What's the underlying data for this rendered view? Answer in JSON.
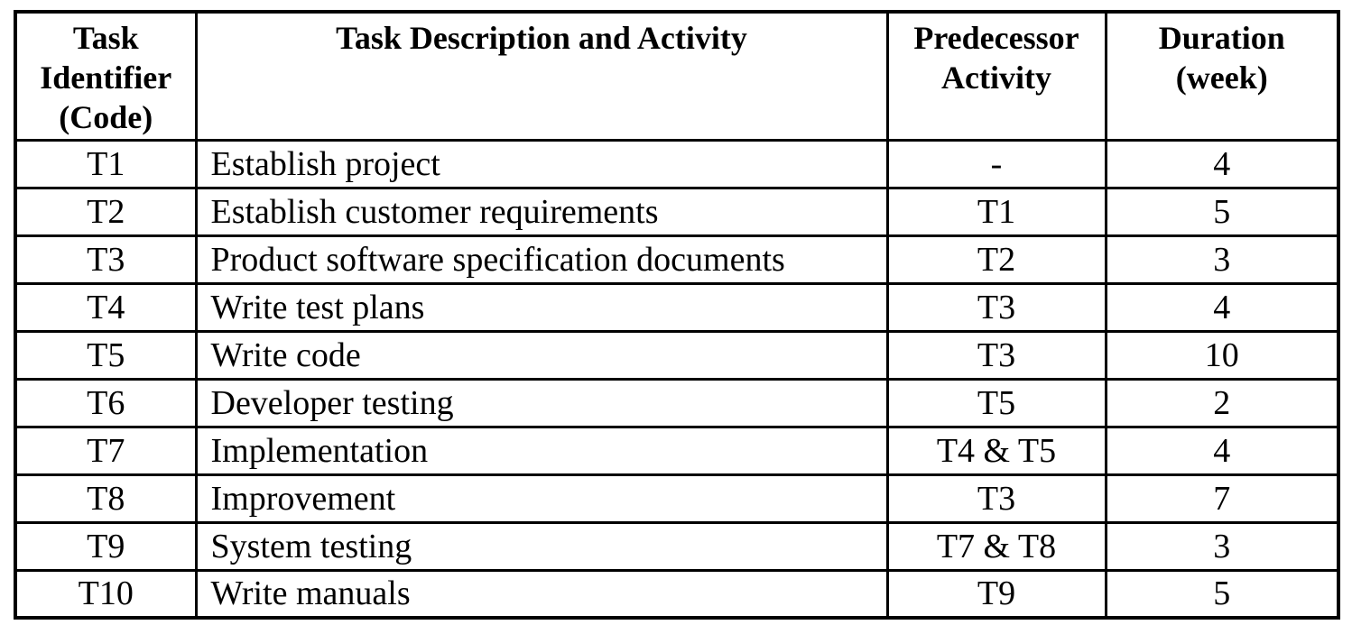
{
  "table": {
    "headers": {
      "code": "Task\nIdentifier\n(Code)",
      "description": "Task Description and Activity",
      "predecessor": "Predecessor\nActivity",
      "duration": "Duration\n(week)"
    },
    "rows": [
      {
        "code": "T1",
        "description": "Establish project",
        "predecessor": "-",
        "duration": "4"
      },
      {
        "code": "T2",
        "description": "Establish customer requirements",
        "predecessor": "T1",
        "duration": "5"
      },
      {
        "code": "T3",
        "description": "Product software specification documents",
        "predecessor": "T2",
        "duration": "3"
      },
      {
        "code": "T4",
        "description": "Write test plans",
        "predecessor": "T3",
        "duration": "4"
      },
      {
        "code": "T5",
        "description": "Write code",
        "predecessor": "T3",
        "duration": "10"
      },
      {
        "code": "T6",
        "description": "Developer testing",
        "predecessor": "T5",
        "duration": "2"
      },
      {
        "code": "T7",
        "description": "Implementation",
        "predecessor": "T4 & T5",
        "duration": "4"
      },
      {
        "code": "T8",
        "description": "Improvement",
        "predecessor": "T3",
        "duration": "7"
      },
      {
        "code": "T9",
        "description": "System testing",
        "predecessor": "T7 & T8",
        "duration": "3"
      },
      {
        "code": "T10",
        "description": "Write manuals",
        "predecessor": "T9",
        "duration": "5"
      }
    ],
    "border_color": "#000000",
    "background_color": "#ffffff",
    "text_color": "#000000"
  }
}
